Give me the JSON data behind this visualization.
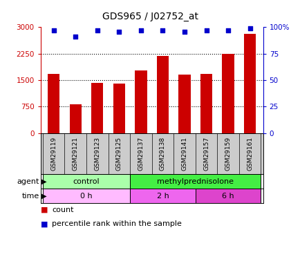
{
  "title": "GDS965 / J02752_at",
  "samples": [
    "GSM29119",
    "GSM29121",
    "GSM29123",
    "GSM29125",
    "GSM29137",
    "GSM29138",
    "GSM29141",
    "GSM29157",
    "GSM29159",
    "GSM29161"
  ],
  "counts": [
    1680,
    810,
    1430,
    1400,
    1780,
    2180,
    1650,
    1680,
    2250,
    2820
  ],
  "percentiles": [
    97,
    91,
    97,
    96,
    97,
    97,
    96,
    97,
    97,
    99
  ],
  "bar_color": "#cc0000",
  "dot_color": "#0000cc",
  "ylim_left": [
    0,
    3000
  ],
  "ylim_right": [
    0,
    100
  ],
  "yticks_left": [
    0,
    750,
    1500,
    2250,
    3000
  ],
  "ytick_labels_left": [
    "0",
    "750",
    "1500",
    "2250",
    "3000"
  ],
  "yticks_right": [
    0,
    25,
    50,
    75,
    100
  ],
  "ytick_labels_right": [
    "0",
    "25",
    "50",
    "75",
    "100%"
  ],
  "agent_row": [
    {
      "label": "control",
      "start": 0,
      "end": 4,
      "color": "#aaffaa"
    },
    {
      "label": "methylprednisolone",
      "start": 4,
      "end": 10,
      "color": "#44ee44"
    }
  ],
  "time_row": [
    {
      "label": "0 h",
      "start": 0,
      "end": 4,
      "color": "#ffbbff"
    },
    {
      "label": "2 h",
      "start": 4,
      "end": 7,
      "color": "#ee66ee"
    },
    {
      "label": "6 h",
      "start": 7,
      "end": 10,
      "color": "#dd44cc"
    }
  ],
  "legend_count_label": "count",
  "legend_pct_label": "percentile rank within the sample",
  "background_color": "#ffffff",
  "label_bg_color": "#cccccc",
  "bar_width": 0.55
}
